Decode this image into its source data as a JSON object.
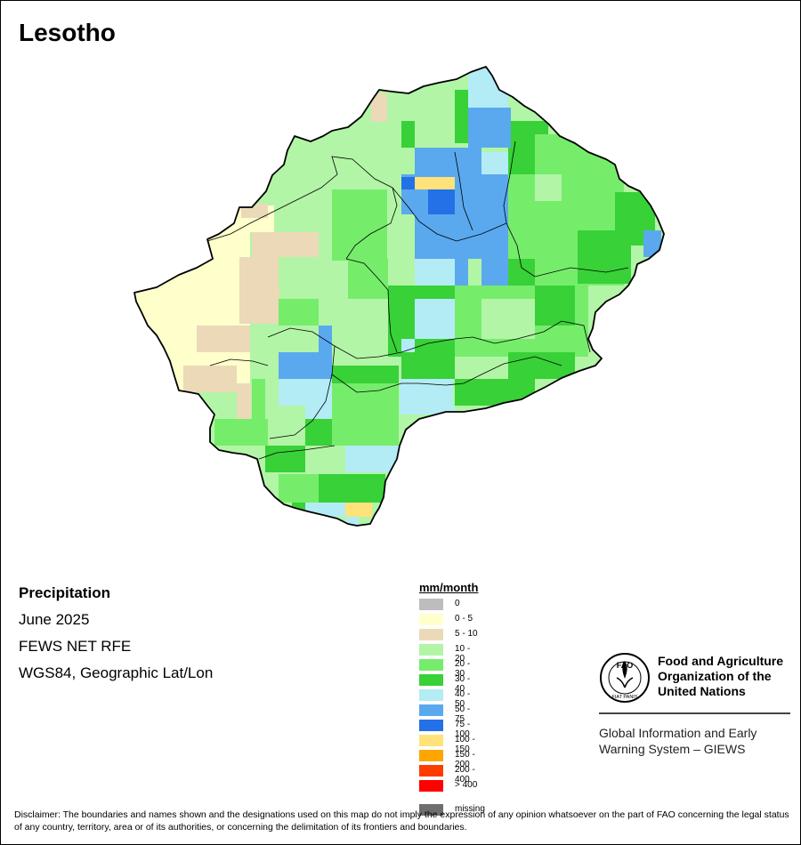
{
  "title": "Lesotho",
  "info": {
    "variable": "Precipitation",
    "period": "June 2025",
    "source": "FEWS NET RFE",
    "projection": "WGS84, Geographic Lat/Lon"
  },
  "legend": {
    "title": "mm/month",
    "items": [
      {
        "label": "0",
        "color": "#bdbdbd"
      },
      {
        "label": "0 - 5",
        "color": "#ffffcc"
      },
      {
        "label": "5 - 10",
        "color": "#ebd9b8"
      },
      {
        "label": "10 - 20",
        "color": "#b2f5a6"
      },
      {
        "label": "20 - 30",
        "color": "#75ed6b"
      },
      {
        "label": "30 - 40",
        "color": "#38d138"
      },
      {
        "label": "40 - 50",
        "color": "#b3ecf5"
      },
      {
        "label": "50 - 75",
        "color": "#5aa9ee"
      },
      {
        "label": "75 - 100",
        "color": "#2470e6"
      },
      {
        "label": "100 - 150",
        "color": "#ffe27a"
      },
      {
        "label": "150 - 200",
        "color": "#ffa500"
      },
      {
        "label": "200 - 400",
        "color": "#ff3c00"
      },
      {
        "label": "> 400",
        "color": "#ff0000"
      }
    ],
    "missing": {
      "label": "missing",
      "color": "#6e6e6e"
    }
  },
  "fao": {
    "name": "Food and Agriculture Organization of the United Nations",
    "logo_letters": "FAO",
    "logo_motto": "FIAT PANIS",
    "giews": "Global Information and Early Warning System – GIEWS"
  },
  "disclaimer": "Disclaimer: The boundaries and names shown and the designations used on this map do not imply the expression of any opinion whatsoever on the part of FAO concerning the legal status of any country, territory, area or of its authorities, or concerning the delimitation of its frontiers and boundaries."
}
